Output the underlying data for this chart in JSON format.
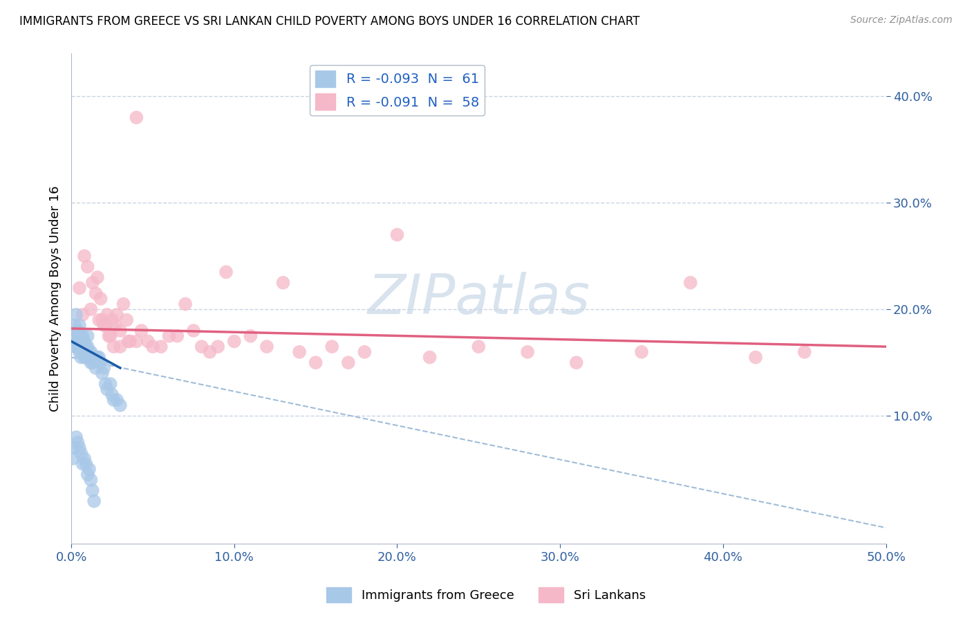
{
  "title": "IMMIGRANTS FROM GREECE VS SRI LANKAN CHILD POVERTY AMONG BOYS UNDER 16 CORRELATION CHART",
  "source": "Source: ZipAtlas.com",
  "ylabel": "Child Poverty Among Boys Under 16",
  "xlim": [
    0.0,
    0.5
  ],
  "ylim": [
    -0.02,
    0.44
  ],
  "xtick_labels": [
    "0.0%",
    "10.0%",
    "20.0%",
    "30.0%",
    "40.0%",
    "50.0%"
  ],
  "xtick_values": [
    0.0,
    0.1,
    0.2,
    0.3,
    0.4,
    0.5
  ],
  "ytick_labels": [
    "10.0%",
    "20.0%",
    "30.0%",
    "40.0%"
  ],
  "ytick_values": [
    0.1,
    0.2,
    0.3,
    0.4
  ],
  "legend1_label": "R = -0.093  N =  61",
  "legend2_label": "R = -0.091  N =  58",
  "scatter_blue_color": "#a8c8e8",
  "scatter_pink_color": "#f5b8c8",
  "line_blue_color": "#1a5ca8",
  "line_pink_color": "#e06080",
  "line_dashed_color": "#a0bcd8",
  "watermark": "ZIPatlas",
  "background_color": "#ffffff",
  "grid_color": "#c8d4e4",
  "blue_scatter_x": [
    0.001,
    0.002,
    0.002,
    0.003,
    0.003,
    0.003,
    0.004,
    0.004,
    0.004,
    0.005,
    0.005,
    0.005,
    0.006,
    0.006,
    0.006,
    0.007,
    0.007,
    0.007,
    0.008,
    0.008,
    0.008,
    0.009,
    0.009,
    0.01,
    0.01,
    0.01,
    0.011,
    0.011,
    0.012,
    0.012,
    0.013,
    0.013,
    0.014,
    0.015,
    0.015,
    0.016,
    0.017,
    0.018,
    0.019,
    0.02,
    0.021,
    0.022,
    0.024,
    0.025,
    0.026,
    0.028,
    0.03,
    0.001,
    0.002,
    0.003,
    0.004,
    0.005,
    0.006,
    0.007,
    0.008,
    0.009,
    0.01,
    0.011,
    0.012,
    0.013,
    0.014
  ],
  "blue_scatter_y": [
    0.175,
    0.185,
    0.165,
    0.195,
    0.175,
    0.165,
    0.18,
    0.175,
    0.17,
    0.185,
    0.165,
    0.16,
    0.175,
    0.165,
    0.155,
    0.175,
    0.16,
    0.17,
    0.17,
    0.165,
    0.155,
    0.165,
    0.155,
    0.175,
    0.165,
    0.155,
    0.16,
    0.155,
    0.16,
    0.15,
    0.155,
    0.15,
    0.155,
    0.155,
    0.145,
    0.155,
    0.155,
    0.15,
    0.14,
    0.145,
    0.13,
    0.125,
    0.13,
    0.12,
    0.115,
    0.115,
    0.11,
    0.06,
    0.07,
    0.08,
    0.075,
    0.07,
    0.065,
    0.055,
    0.06,
    0.055,
    0.045,
    0.05,
    0.04,
    0.03,
    0.02
  ],
  "pink_scatter_x": [
    0.005,
    0.008,
    0.01,
    0.012,
    0.015,
    0.017,
    0.018,
    0.02,
    0.022,
    0.023,
    0.025,
    0.027,
    0.028,
    0.03,
    0.032,
    0.034,
    0.036,
    0.04,
    0.043,
    0.047,
    0.05,
    0.055,
    0.06,
    0.065,
    0.07,
    0.075,
    0.08,
    0.085,
    0.09,
    0.095,
    0.1,
    0.11,
    0.12,
    0.13,
    0.14,
    0.15,
    0.16,
    0.17,
    0.18,
    0.2,
    0.22,
    0.25,
    0.28,
    0.31,
    0.35,
    0.38,
    0.42,
    0.45,
    0.007,
    0.013,
    0.016,
    0.019,
    0.021,
    0.024,
    0.026,
    0.03,
    0.035,
    0.04
  ],
  "pink_scatter_y": [
    0.22,
    0.25,
    0.24,
    0.2,
    0.215,
    0.19,
    0.21,
    0.185,
    0.195,
    0.175,
    0.19,
    0.185,
    0.195,
    0.18,
    0.205,
    0.19,
    0.17,
    0.17,
    0.18,
    0.17,
    0.165,
    0.165,
    0.175,
    0.175,
    0.205,
    0.18,
    0.165,
    0.16,
    0.165,
    0.235,
    0.17,
    0.175,
    0.165,
    0.225,
    0.16,
    0.15,
    0.165,
    0.15,
    0.16,
    0.27,
    0.155,
    0.165,
    0.16,
    0.15,
    0.16,
    0.225,
    0.155,
    0.16,
    0.195,
    0.225,
    0.23,
    0.19,
    0.185,
    0.175,
    0.165,
    0.165,
    0.17,
    0.38
  ],
  "blue_line_x": [
    0.0,
    0.03
  ],
  "blue_line_y": [
    0.17,
    0.145
  ],
  "pink_line_x": [
    0.0,
    0.5
  ],
  "pink_line_y": [
    0.182,
    0.165
  ],
  "dash_line_x": [
    0.0,
    0.5
  ],
  "dash_line_y": [
    0.155,
    -0.005
  ]
}
